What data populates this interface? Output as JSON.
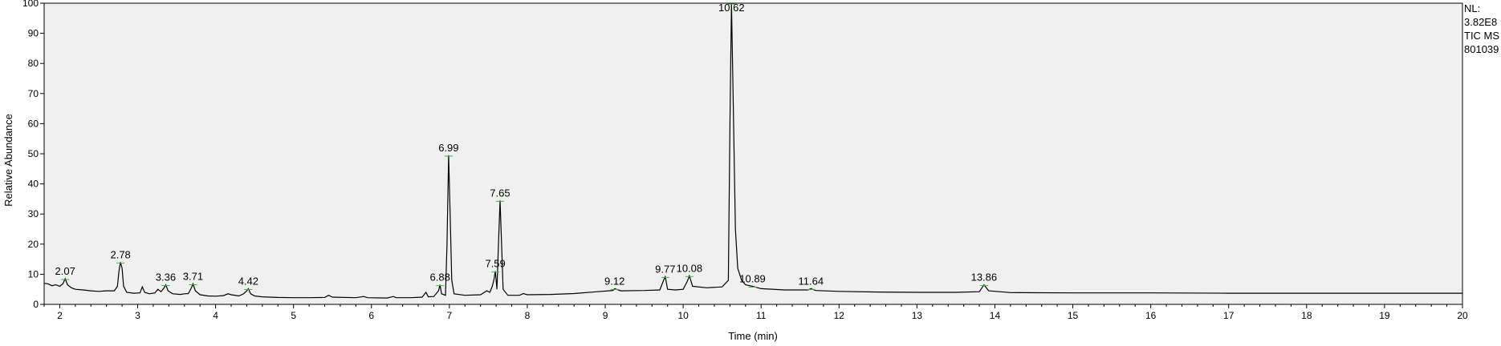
{
  "chart_data": {
    "type": "line",
    "title": "",
    "xlabel": "Time (min)",
    "ylabel": "Relative Abundance",
    "xlim": [
      1.8,
      20
    ],
    "ylim": [
      0,
      100
    ],
    "x_ticks": [
      2,
      3,
      4,
      5,
      6,
      7,
      8,
      9,
      10,
      11,
      12,
      13,
      14,
      15,
      16,
      17,
      18,
      19,
      20
    ],
    "y_ticks": [
      0,
      10,
      20,
      30,
      40,
      50,
      60,
      70,
      80,
      90,
      100
    ],
    "grid": false,
    "line_color": "#000000",
    "plot_background": "#f0f0f0",
    "marker_color": "#3cb43c",
    "info": [
      "NL:",
      "3.82E8",
      "TIC  MS",
      "801039"
    ],
    "peaks": [
      {
        "x": 2.07,
        "y": 8.5,
        "label": "2.07"
      },
      {
        "x": 2.78,
        "y": 14,
        "label": "2.78"
      },
      {
        "x": 3.36,
        "y": 6.5,
        "label": "3.36"
      },
      {
        "x": 3.71,
        "y": 6.8,
        "label": "3.71"
      },
      {
        "x": 4.42,
        "y": 5.2,
        "label": "4.42"
      },
      {
        "x": 6.88,
        "y": 6.5,
        "label": "6.88"
      },
      {
        "x": 6.99,
        "y": 49.5,
        "label": "6.99"
      },
      {
        "x": 7.59,
        "y": 11,
        "label": "7.59"
      },
      {
        "x": 7.65,
        "y": 34.5,
        "label": "7.65"
      },
      {
        "x": 9.12,
        "y": 5.2,
        "label": "9.12"
      },
      {
        "x": 9.77,
        "y": 9.2,
        "label": "9.77"
      },
      {
        "x": 10.08,
        "y": 9.5,
        "label": "10.08"
      },
      {
        "x": 10.62,
        "y": 100,
        "label": "10.62"
      },
      {
        "x": 10.89,
        "y": 6.0,
        "label": "10.89"
      },
      {
        "x": 11.64,
        "y": 5.2,
        "label": "11.64"
      },
      {
        "x": 13.86,
        "y": 6.5,
        "label": "13.86"
      }
    ],
    "trace": [
      [
        1.8,
        7.0
      ],
      [
        1.85,
        6.8
      ],
      [
        1.9,
        6.2
      ],
      [
        1.95,
        6.5
      ],
      [
        2.0,
        6.0
      ],
      [
        2.04,
        6.8
      ],
      [
        2.07,
        8.5
      ],
      [
        2.1,
        6.5
      ],
      [
        2.15,
        5.5
      ],
      [
        2.2,
        5.0
      ],
      [
        2.3,
        4.8
      ],
      [
        2.4,
        4.5
      ],
      [
        2.5,
        4.3
      ],
      [
        2.6,
        4.5
      ],
      [
        2.7,
        4.5
      ],
      [
        2.74,
        6.0
      ],
      [
        2.76,
        11.0
      ],
      [
        2.78,
        14.0
      ],
      [
        2.8,
        12.0
      ],
      [
        2.82,
        6.0
      ],
      [
        2.86,
        4.0
      ],
      [
        2.95,
        3.7
      ],
      [
        3.03,
        3.8
      ],
      [
        3.06,
        5.8
      ],
      [
        3.09,
        4.0
      ],
      [
        3.15,
        3.5
      ],
      [
        3.22,
        3.8
      ],
      [
        3.26,
        5.0
      ],
      [
        3.3,
        4.2
      ],
      [
        3.34,
        5.5
      ],
      [
        3.36,
        6.5
      ],
      [
        3.39,
        4.5
      ],
      [
        3.45,
        3.5
      ],
      [
        3.55,
        3.3
      ],
      [
        3.6,
        3.5
      ],
      [
        3.65,
        3.6
      ],
      [
        3.69,
        5.5
      ],
      [
        3.71,
        6.8
      ],
      [
        3.74,
        4.5
      ],
      [
        3.8,
        3.2
      ],
      [
        3.9,
        2.8
      ],
      [
        4.0,
        2.7
      ],
      [
        4.1,
        2.9
      ],
      [
        4.16,
        3.5
      ],
      [
        4.2,
        3.2
      ],
      [
        4.3,
        2.8
      ],
      [
        4.36,
        3.5
      ],
      [
        4.4,
        4.5
      ],
      [
        4.42,
        5.2
      ],
      [
        4.45,
        3.5
      ],
      [
        4.5,
        2.8
      ],
      [
        4.6,
        2.5
      ],
      [
        4.8,
        2.3
      ],
      [
        5.0,
        2.2
      ],
      [
        5.2,
        2.2
      ],
      [
        5.4,
        2.3
      ],
      [
        5.45,
        3.0
      ],
      [
        5.5,
        2.4
      ],
      [
        5.8,
        2.2
      ],
      [
        5.9,
        2.6
      ],
      [
        5.95,
        2.2
      ],
      [
        6.2,
        2.1
      ],
      [
        6.28,
        2.6
      ],
      [
        6.32,
        2.2
      ],
      [
        6.5,
        2.2
      ],
      [
        6.65,
        2.4
      ],
      [
        6.7,
        4.0
      ],
      [
        6.73,
        2.5
      ],
      [
        6.8,
        2.6
      ],
      [
        6.86,
        4.5
      ],
      [
        6.88,
        6.5
      ],
      [
        6.9,
        3.5
      ],
      [
        6.95,
        3.0
      ],
      [
        6.97,
        20.0
      ],
      [
        6.99,
        49.5
      ],
      [
        7.01,
        30.0
      ],
      [
        7.03,
        8.0
      ],
      [
        7.06,
        3.5
      ],
      [
        7.2,
        3.0
      ],
      [
        7.4,
        3.2
      ],
      [
        7.48,
        4.5
      ],
      [
        7.52,
        4.0
      ],
      [
        7.55,
        6.0
      ],
      [
        7.57,
        8.0
      ],
      [
        7.59,
        11.0
      ],
      [
        7.61,
        5.0
      ],
      [
        7.63,
        20.0
      ],
      [
        7.65,
        34.5
      ],
      [
        7.67,
        20.0
      ],
      [
        7.69,
        5.0
      ],
      [
        7.75,
        3.0
      ],
      [
        7.9,
        3.0
      ],
      [
        7.95,
        3.6
      ],
      [
        8.0,
        3.2
      ],
      [
        8.3,
        3.3
      ],
      [
        8.6,
        3.6
      ],
      [
        8.9,
        4.2
      ],
      [
        9.1,
        4.6
      ],
      [
        9.12,
        5.2
      ],
      [
        9.2,
        4.5
      ],
      [
        9.5,
        4.6
      ],
      [
        9.7,
        4.8
      ],
      [
        9.75,
        8.0
      ],
      [
        9.77,
        9.2
      ],
      [
        9.8,
        5.0
      ],
      [
        9.9,
        4.8
      ],
      [
        10.0,
        5.0
      ],
      [
        10.05,
        7.5
      ],
      [
        10.08,
        9.5
      ],
      [
        10.12,
        6.0
      ],
      [
        10.3,
        5.5
      ],
      [
        10.5,
        5.8
      ],
      [
        10.58,
        8.0
      ],
      [
        10.6,
        60.0
      ],
      [
        10.62,
        100.0
      ],
      [
        10.64,
        70.0
      ],
      [
        10.67,
        25.0
      ],
      [
        10.7,
        12.0
      ],
      [
        10.75,
        8.0
      ],
      [
        10.8,
        6.5
      ],
      [
        10.89,
        6.0
      ],
      [
        11.0,
        5.2
      ],
      [
        11.3,
        4.8
      ],
      [
        11.6,
        4.8
      ],
      [
        11.64,
        5.2
      ],
      [
        11.7,
        4.6
      ],
      [
        12.0,
        4.3
      ],
      [
        12.5,
        4.1
      ],
      [
        13.0,
        4.0
      ],
      [
        13.5,
        4.0
      ],
      [
        13.8,
        4.2
      ],
      [
        13.86,
        6.5
      ],
      [
        13.92,
        4.5
      ],
      [
        14.2,
        3.9
      ],
      [
        15.0,
        3.8
      ],
      [
        16.0,
        3.8
      ],
      [
        17.0,
        3.7
      ],
      [
        18.0,
        3.7
      ],
      [
        19.0,
        3.7
      ],
      [
        20.0,
        3.7
      ]
    ]
  }
}
